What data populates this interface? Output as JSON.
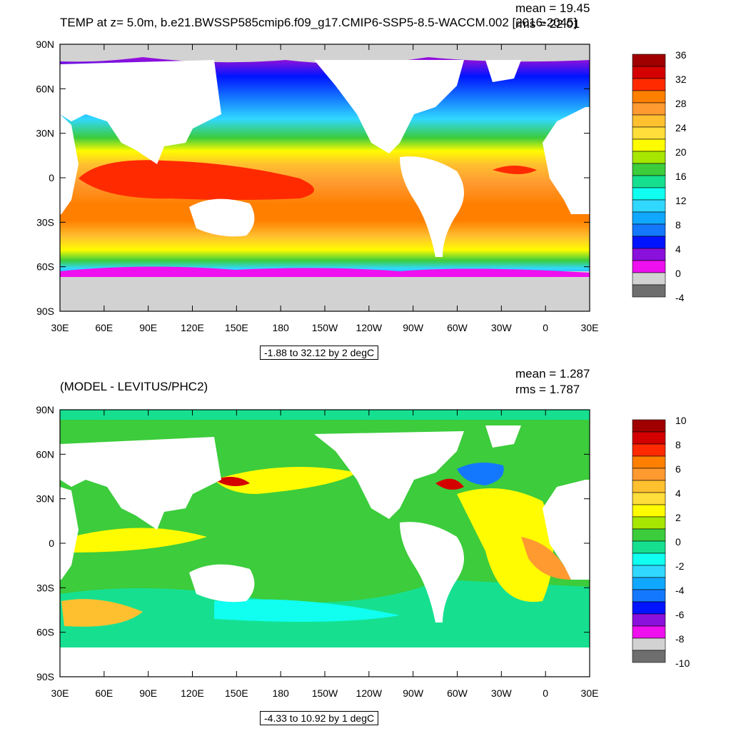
{
  "panel_top": {
    "title": "TEMP at z=   5.0m, b.e21.BWSSP585cmip6.f09_g17.CMIP6-SSP5-8.5-WACCM.002 [2016-2045]",
    "mean_label": "mean = 19.45",
    "rms_label": "rms = 22.01",
    "range_label": "-1.88 to 32.12 by 2 degC",
    "colorbar_labels": [
      "36",
      "32",
      "28",
      "24",
      "20",
      "16",
      "12",
      "8",
      "4",
      "0",
      "-4"
    ],
    "colorbar_colors": [
      "#a00000",
      "#d40000",
      "#ff2a00",
      "#ff7f00",
      "#ff9a30",
      "#ffc030",
      "#ffdd3a",
      "#fffb00",
      "#a6e600",
      "#3ccc3c",
      "#16e090",
      "#10fff0",
      "#30d8ff",
      "#10a8ff",
      "#1478ff",
      "#0014ff",
      "#8a10dc",
      "#ee10ee",
      "#d2d2d2",
      "#6e6e6e"
    ]
  },
  "panel_bottom": {
    "title": "(MODEL - LEVITUS/PHC2)",
    "mean_label": "mean = 1.287",
    "rms_label": "rms = 1.787",
    "range_label": "-4.33 to 10.92 by 1 degC",
    "colorbar_labels": [
      "10",
      "8",
      "6",
      "4",
      "2",
      "0",
      "-2",
      "-4",
      "-6",
      "-8",
      "-10"
    ],
    "colorbar_colors": [
      "#a00000",
      "#d40000",
      "#ff2a00",
      "#ff7f00",
      "#ff9a30",
      "#ffc030",
      "#ffdd3a",
      "#fffb00",
      "#a6e600",
      "#3ccc3c",
      "#16e090",
      "#10fff0",
      "#30d8ff",
      "#10a8ff",
      "#1478ff",
      "#0014ff",
      "#8a10dc",
      "#ee10ee",
      "#d2d2d2",
      "#6e6e6e"
    ]
  },
  "axes": {
    "lat_labels": [
      "90N",
      "60N",
      "30N",
      "0",
      "30S",
      "60S",
      "90S"
    ],
    "lon_labels": [
      "30E",
      "60E",
      "90E",
      "120E",
      "150E",
      "180",
      "150W",
      "120W",
      "90W",
      "60W",
      "30W",
      "0",
      "30E"
    ]
  },
  "colors": {
    "land": "#ffffff",
    "ice": "#d2d2d2",
    "frame": "#000000"
  }
}
